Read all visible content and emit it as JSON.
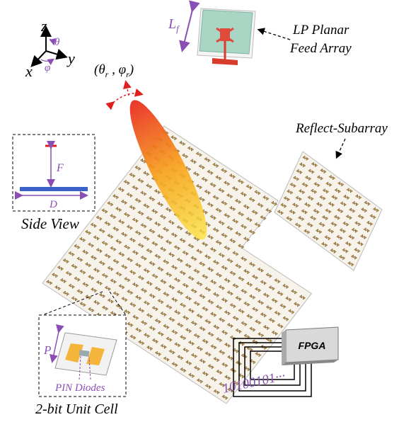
{
  "axes": {
    "z": "z",
    "y": "y",
    "x": "x",
    "theta": "θ",
    "phi": "φ"
  },
  "feed": {
    "size_main": "L",
    "size_sub": "f",
    "title_lines": [
      "LP Planar",
      "Feed Array"
    ]
  },
  "beam": {
    "label_parts": [
      "(θ",
      "r",
      " , φ",
      "r",
      ")"
    ]
  },
  "subarray": {
    "label": "Reflect-Subarray"
  },
  "side_view": {
    "focal": "F",
    "diameter": "D",
    "caption": "Side View"
  },
  "unit_cell": {
    "period": "P",
    "diodes": "PIN Diodes",
    "caption": "2-bit Unit Cell"
  },
  "controller": {
    "label": "FPGA",
    "code": "10100101···"
  }
}
